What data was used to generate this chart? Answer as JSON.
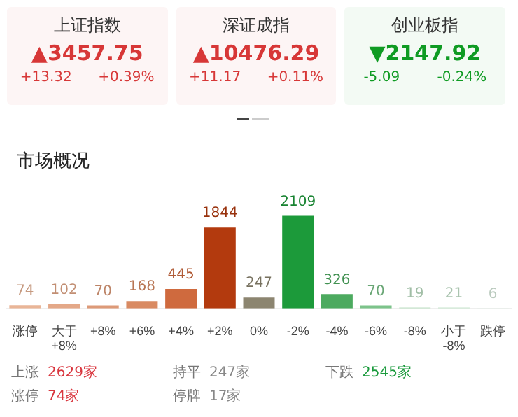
{
  "chart_data": [
    {
      "type": "other",
      "categories": [
        "上证指数",
        "深证成指",
        "创业板指"
      ],
      "colors": [
        "#fdf5f5",
        "#fdf5f5",
        "#f3faf4"
      ],
      "annotations": [
        "▲3457.75",
        "+13.32",
        "+0.39%",
        "▲10476.29",
        "+11.17",
        "+0.11%",
        "▼2147.92",
        "-5.09",
        "-0.24%"
      ]
    },
    {
      "type": "bar",
      "title": "市场概况",
      "categories": [
        "涨停",
        "大于+8%",
        "+8%",
        "+6%",
        "+4%",
        "+2%",
        "0%",
        "-2%",
        "-4%",
        "-6%",
        "-8%",
        "小于-8%",
        "跌停"
      ],
      "values": [
        74,
        102,
        70,
        168,
        445,
        1844,
        247,
        2109,
        326,
        70,
        19,
        21,
        6
      ],
      "colors": [
        "#e9b597",
        "#e4a888",
        "#dd9a78",
        "#d98a62",
        "#cf6a3e",
        "#b33a0e",
        "#8c8570",
        "#1c9a3a",
        "#4caa5f",
        "#7cc38a",
        "#bde0c3",
        "#c8e6ce",
        "#dbeedf"
      ],
      "data_labels": true,
      "annotations": [
        "上涨",
        "2629家",
        "持平",
        "247家",
        "下跌",
        "2545家",
        "涨停",
        "74家",
        "停牌",
        "17家"
      ]
    }
  ]
}
